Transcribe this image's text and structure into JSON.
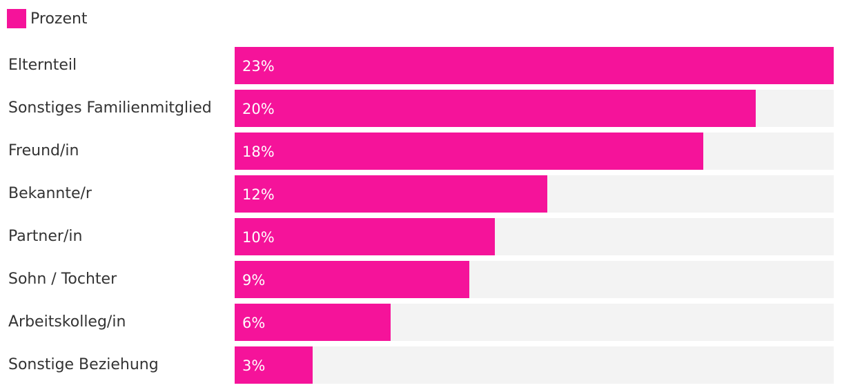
{
  "chart_data": {
    "type": "bar",
    "orientation": "horizontal",
    "categories": [
      "Elternteil",
      "Sonstiges Familienmitglied",
      "Freund/in",
      "Bekannte/r",
      "Partner/in",
      "Sohn / Tochter",
      "Arbeitskolleg/in",
      "Sonstige Beziehung"
    ],
    "series": [
      {
        "name": "Prozent",
        "values": [
          23,
          20,
          18,
          12,
          10,
          9,
          6,
          3
        ],
        "labels": [
          "23%",
          "20%",
          "18%",
          "12%",
          "10%",
          "9%",
          "6%",
          "3%"
        ]
      }
    ],
    "xlim": [
      0,
      23
    ],
    "legend_position": "top-left",
    "grid": false,
    "colors": {
      "bar": "#f5139a",
      "track": "#f3f3f3"
    }
  }
}
